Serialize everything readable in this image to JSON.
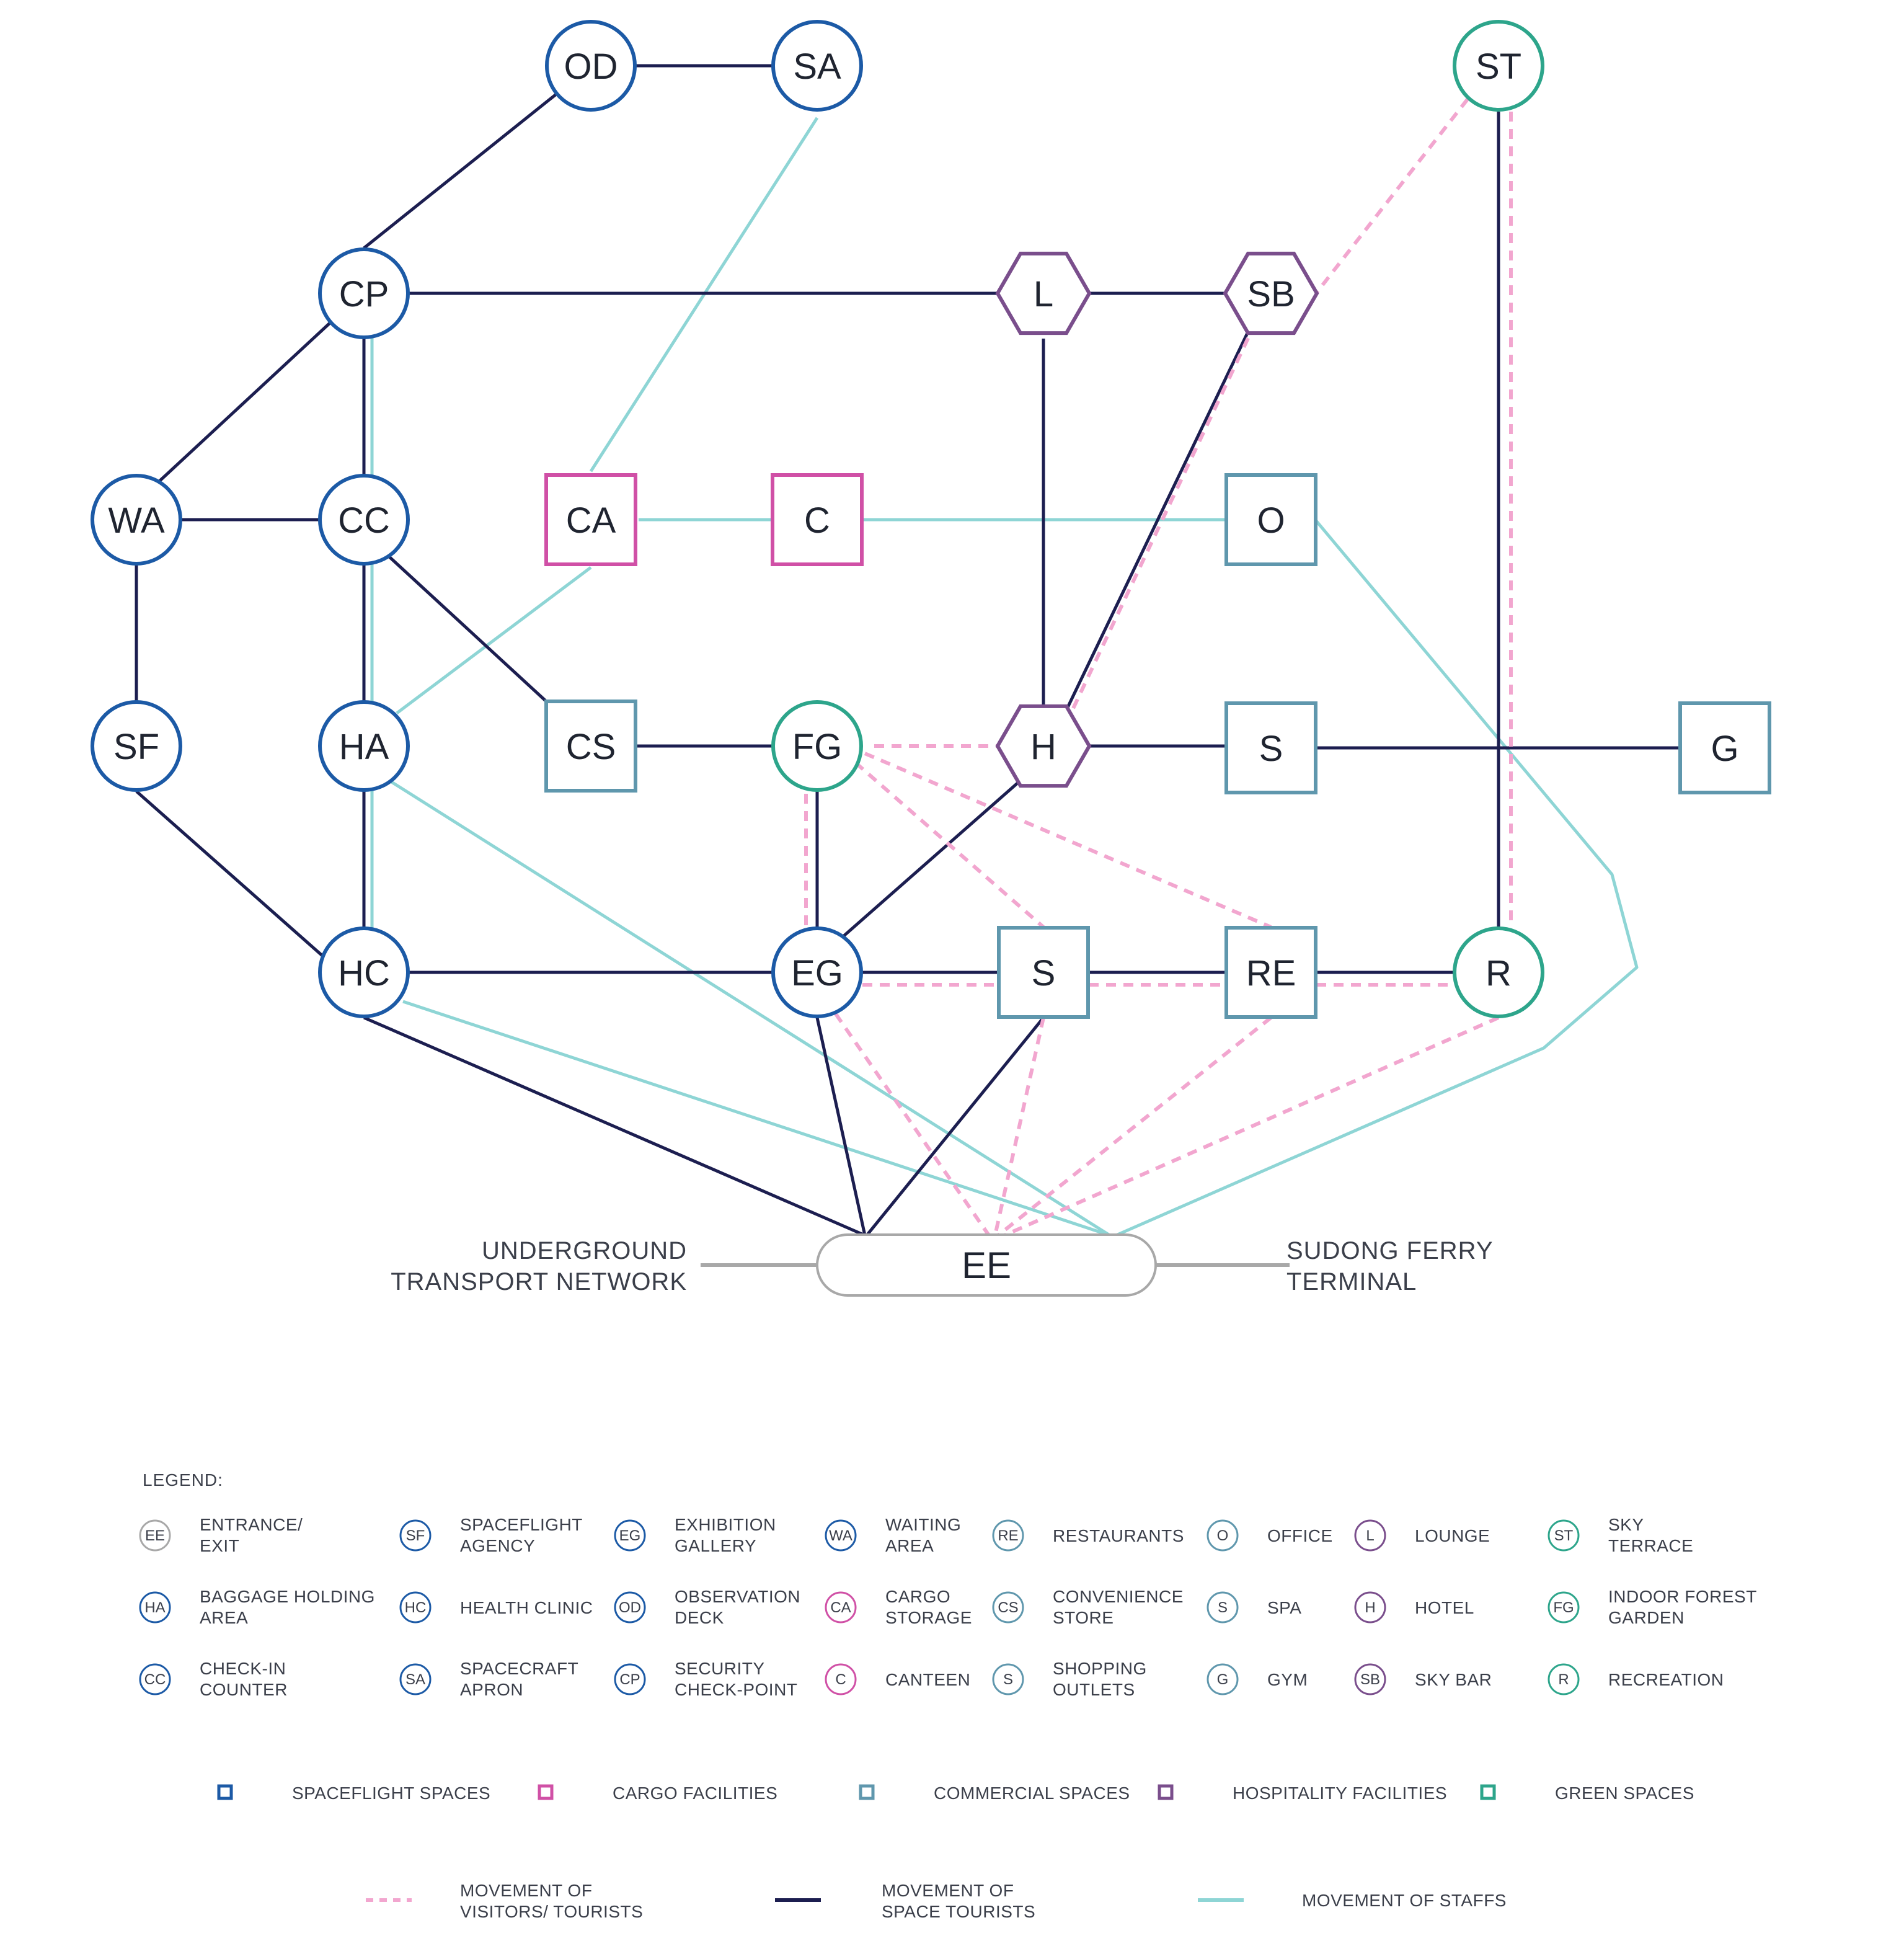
{
  "colors": {
    "spaceflight": "#1c5aa6",
    "cargo": "#d050a6",
    "commercial": "#5f97ad",
    "hospitality": "#7a4e8c",
    "green": "#2da58b",
    "space_tourists_line": "#1c1e50",
    "staff_line": "#8ed5d5",
    "visitor_line": "#f2a6cf",
    "ee_gray": "#a8a8a8"
  },
  "nodes": [
    {
      "id": "OD",
      "label": "OD",
      "shape": "circle",
      "category": "spaceflight"
    },
    {
      "id": "SA",
      "label": "SA",
      "shape": "circle",
      "category": "spaceflight"
    },
    {
      "id": "ST",
      "label": "ST",
      "shape": "circle",
      "category": "green"
    },
    {
      "id": "CP",
      "label": "CP",
      "shape": "circle",
      "category": "spaceflight"
    },
    {
      "id": "L",
      "label": "L",
      "shape": "hexagon",
      "category": "hospitality"
    },
    {
      "id": "SB",
      "label": "SB",
      "shape": "hexagon",
      "category": "hospitality"
    },
    {
      "id": "WA",
      "label": "WA",
      "shape": "circle",
      "category": "spaceflight"
    },
    {
      "id": "CC",
      "label": "CC",
      "shape": "circle",
      "category": "spaceflight"
    },
    {
      "id": "CA",
      "label": "CA",
      "shape": "square",
      "category": "cargo"
    },
    {
      "id": "C",
      "label": "C",
      "shape": "square",
      "category": "cargo"
    },
    {
      "id": "O",
      "label": "O",
      "shape": "square",
      "category": "commercial"
    },
    {
      "id": "SF",
      "label": "SF",
      "shape": "circle",
      "category": "spaceflight"
    },
    {
      "id": "HA",
      "label": "HA",
      "shape": "circle",
      "category": "spaceflight"
    },
    {
      "id": "CS",
      "label": "CS",
      "shape": "square",
      "category": "commercial"
    },
    {
      "id": "FG",
      "label": "FG",
      "shape": "circle",
      "category": "green"
    },
    {
      "id": "H",
      "label": "H",
      "shape": "hexagon",
      "category": "hospitality"
    },
    {
      "id": "SPA",
      "label": "S",
      "shape": "square",
      "category": "commercial"
    },
    {
      "id": "G",
      "label": "G",
      "shape": "square",
      "category": "commercial"
    },
    {
      "id": "HC",
      "label": "HC",
      "shape": "circle",
      "category": "spaceflight"
    },
    {
      "id": "EG",
      "label": "EG",
      "shape": "circle",
      "category": "spaceflight"
    },
    {
      "id": "SO",
      "label": "S",
      "shape": "square",
      "category": "commercial"
    },
    {
      "id": "RE",
      "label": "RE",
      "shape": "square",
      "category": "commercial"
    },
    {
      "id": "R",
      "label": "R",
      "shape": "circle",
      "category": "green"
    }
  ],
  "ee": {
    "label": "EE",
    "left_connection": [
      "UNDERGROUND",
      "TRANSPORT NETWORK"
    ],
    "right_connection": [
      "SUDONG FERRY",
      "TERMINAL"
    ]
  },
  "legend": {
    "title": "LEGEND:",
    "items": [
      {
        "abbr": "EE",
        "lines": [
          "ENTRANCE/",
          "EXIT"
        ],
        "category": "ee"
      },
      {
        "abbr": "SF",
        "lines": [
          "SPACEFLIGHT",
          "AGENCY"
        ],
        "category": "spaceflight"
      },
      {
        "abbr": "EG",
        "lines": [
          "EXHIBITION",
          "GALLERY"
        ],
        "category": "spaceflight"
      },
      {
        "abbr": "WA",
        "lines": [
          "WAITING",
          "AREA"
        ],
        "category": "spaceflight"
      },
      {
        "abbr": "RE",
        "lines": [
          "RESTAURANTS"
        ],
        "category": "commercial"
      },
      {
        "abbr": "O",
        "lines": [
          "OFFICE"
        ],
        "category": "commercial"
      },
      {
        "abbr": "L",
        "lines": [
          "LOUNGE"
        ],
        "category": "hospitality"
      },
      {
        "abbr": "ST",
        "lines": [
          "SKY",
          "TERRACE"
        ],
        "category": "green"
      },
      {
        "abbr": "HA",
        "lines": [
          "BAGGAGE HOLDING",
          "AREA"
        ],
        "category": "spaceflight"
      },
      {
        "abbr": "HC",
        "lines": [
          "HEALTH CLINIC"
        ],
        "category": "spaceflight"
      },
      {
        "abbr": "OD",
        "lines": [
          "OBSERVATION",
          "DECK"
        ],
        "category": "spaceflight"
      },
      {
        "abbr": "CA",
        "lines": [
          "CARGO",
          "STORAGE"
        ],
        "category": "cargo"
      },
      {
        "abbr": "CS",
        "lines": [
          "CONVENIENCE",
          "STORE"
        ],
        "category": "commercial"
      },
      {
        "abbr": "S",
        "lines": [
          "SPA"
        ],
        "category": "commercial"
      },
      {
        "abbr": "H",
        "lines": [
          "HOTEL"
        ],
        "category": "hospitality"
      },
      {
        "abbr": "FG",
        "lines": [
          "INDOOR FOREST",
          "GARDEN"
        ],
        "category": "green"
      },
      {
        "abbr": "CC",
        "lines": [
          "CHECK-IN",
          "COUNTER"
        ],
        "category": "spaceflight"
      },
      {
        "abbr": "SA",
        "lines": [
          "SPACECRAFT",
          "APRON"
        ],
        "category": "spaceflight"
      },
      {
        "abbr": "CP",
        "lines": [
          "SECURITY",
          "CHECK-POINT"
        ],
        "category": "spaceflight"
      },
      {
        "abbr": "C",
        "lines": [
          "CANTEEN"
        ],
        "category": "cargo"
      },
      {
        "abbr": "S",
        "lines": [
          "SHOPPING",
          "OUTLETS"
        ],
        "category": "commercial"
      },
      {
        "abbr": "G",
        "lines": [
          "GYM"
        ],
        "category": "commercial"
      },
      {
        "abbr": "SB",
        "lines": [
          "SKY BAR"
        ],
        "category": "hospitality"
      },
      {
        "abbr": "R",
        "lines": [
          "RECREATION"
        ],
        "category": "green"
      }
    ],
    "categories": [
      {
        "label": "SPACEFLIGHT SPACES",
        "category": "spaceflight"
      },
      {
        "label": "CARGO FACILITIES",
        "category": "cargo"
      },
      {
        "label": "COMMERCIAL SPACES",
        "category": "commercial"
      },
      {
        "label": "HOSPITALITY FACILITIES",
        "category": "hospitality"
      },
      {
        "label": "GREEN SPACES",
        "category": "green"
      }
    ],
    "movements": [
      {
        "lines": [
          "MOVEMENT OF",
          "VISITORS/ TOURISTS"
        ],
        "style": "visitor"
      },
      {
        "lines": [
          "MOVEMENT OF",
          "SPACE TOURISTS"
        ],
        "style": "space_tourists"
      },
      {
        "lines": [
          "MOVEMENT OF STAFFS"
        ],
        "style": "staff"
      }
    ]
  }
}
